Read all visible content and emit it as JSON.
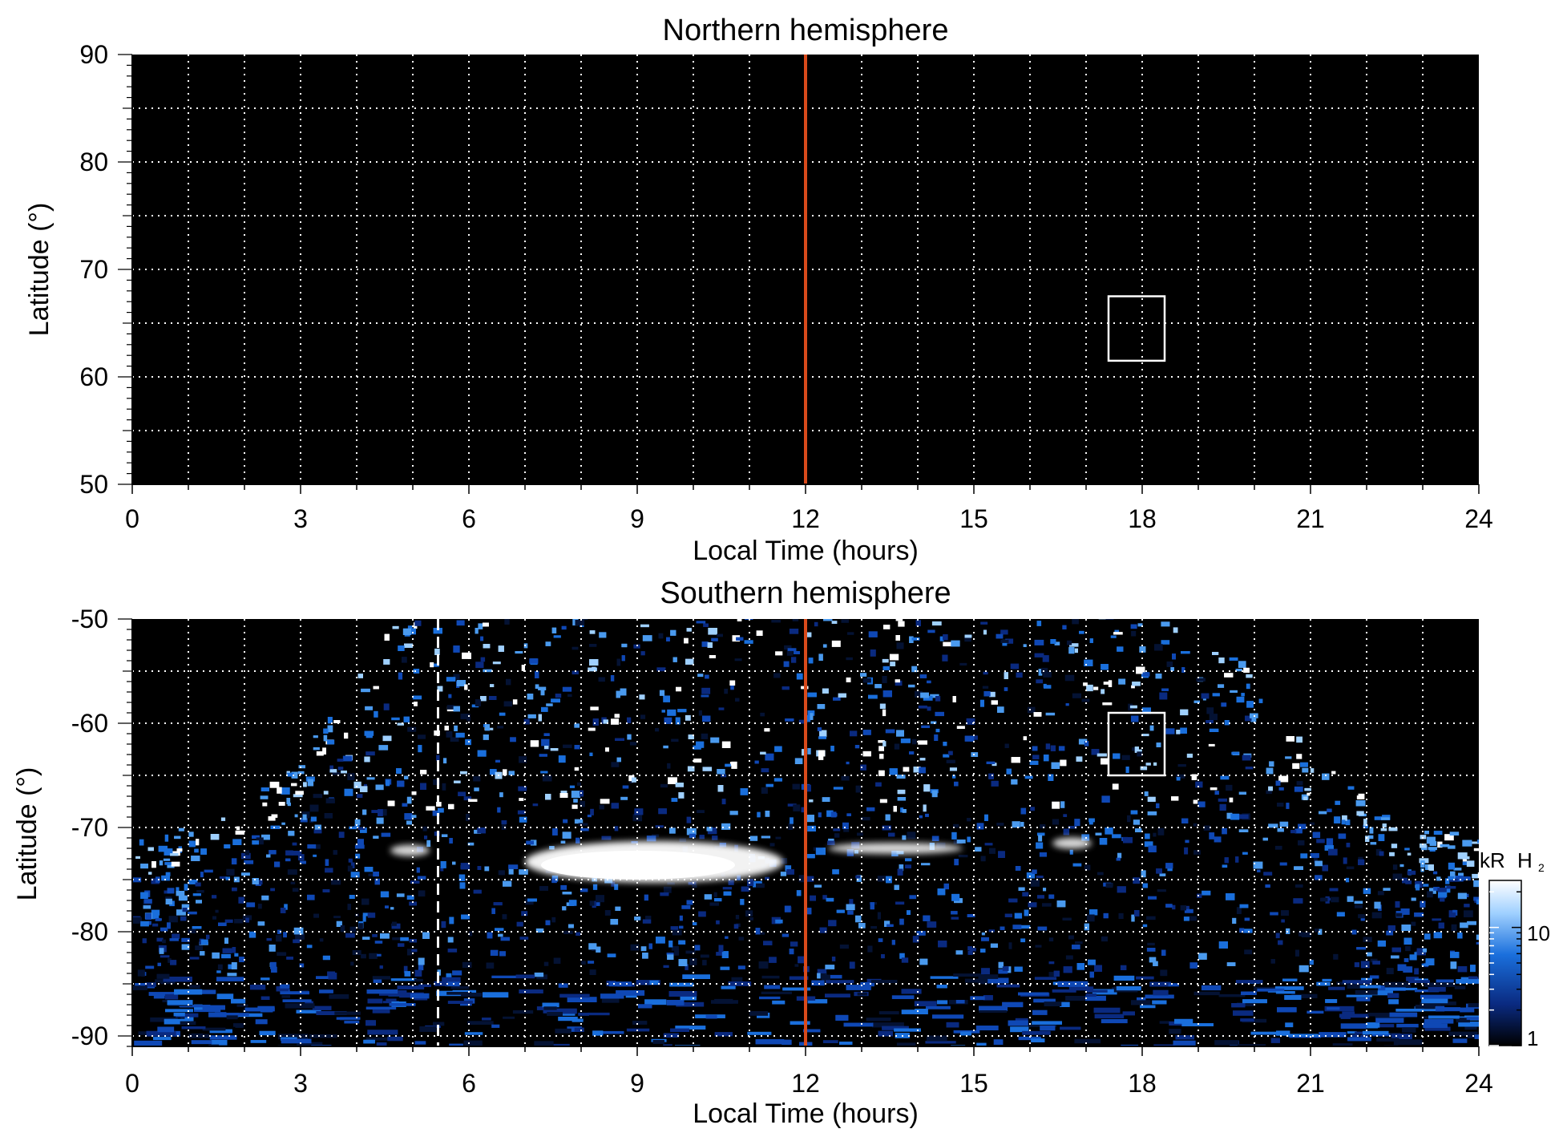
{
  "chart_data": [
    {
      "type": "heatmap",
      "title": "Northern hemisphere",
      "xlabel": "Local Time (hours)",
      "ylabel": "Latitude (°)",
      "xlim": [
        0,
        24
      ],
      "ylim": [
        50,
        90
      ],
      "xticks": [
        "0",
        "3",
        "6",
        "9",
        "12",
        "15",
        "18",
        "21",
        "24"
      ],
      "yticks": [
        "50",
        "60",
        "70",
        "80",
        "90"
      ],
      "grid": true,
      "background": "#000000",
      "emission": "none",
      "noon_line": {
        "x": 12,
        "color": "#d84a1b"
      },
      "box": {
        "x": [
          17.4,
          18.4
        ],
        "y": [
          61.5,
          67.5
        ],
        "color": "#ffffff"
      }
    },
    {
      "type": "heatmap",
      "title": "Southern hemisphere",
      "xlabel": "Local Time (hours)",
      "ylabel": "Latitude (°)",
      "xlim": [
        0,
        24
      ],
      "ylim": [
        -91,
        -50
      ],
      "xticks": [
        "0",
        "3",
        "6",
        "9",
        "12",
        "15",
        "18",
        "21",
        "24"
      ],
      "yticks": [
        "-90",
        "-80",
        "-70",
        "-60",
        "-50"
      ],
      "grid": true,
      "background": "#000000",
      "noon_line": {
        "x": 12,
        "color": "#d84a1b"
      },
      "dashed_line": {
        "x": 5.45,
        "color": "#ffffff"
      },
      "box": {
        "x": [
          17.4,
          18.4
        ],
        "y": [
          -65,
          -59
        ],
        "color": "#ffffff"
      },
      "main_oval": {
        "x": [
          7,
          11.6
        ],
        "y_center": -73.3,
        "color": "#ffffff"
      },
      "spots": [
        {
          "x": [
            4.6,
            5.3
          ],
          "y": -72.2
        },
        {
          "x": [
            12.4,
            14.8
          ],
          "y": -72.0
        },
        {
          "x": [
            16.4,
            17.1
          ],
          "y": -71.5
        }
      ],
      "coverage_edge_latitude": -50,
      "colorbar": {
        "label": "kR",
        "label_species": "H",
        "label_subscript": "2",
        "ticks": [
          "1",
          "10"
        ],
        "scale": "log",
        "range": [
          1,
          25
        ],
        "colors": [
          "#000000",
          "#0a2a80",
          "#1a6fdc",
          "#9fd0ff",
          "#ffffff"
        ]
      }
    }
  ]
}
